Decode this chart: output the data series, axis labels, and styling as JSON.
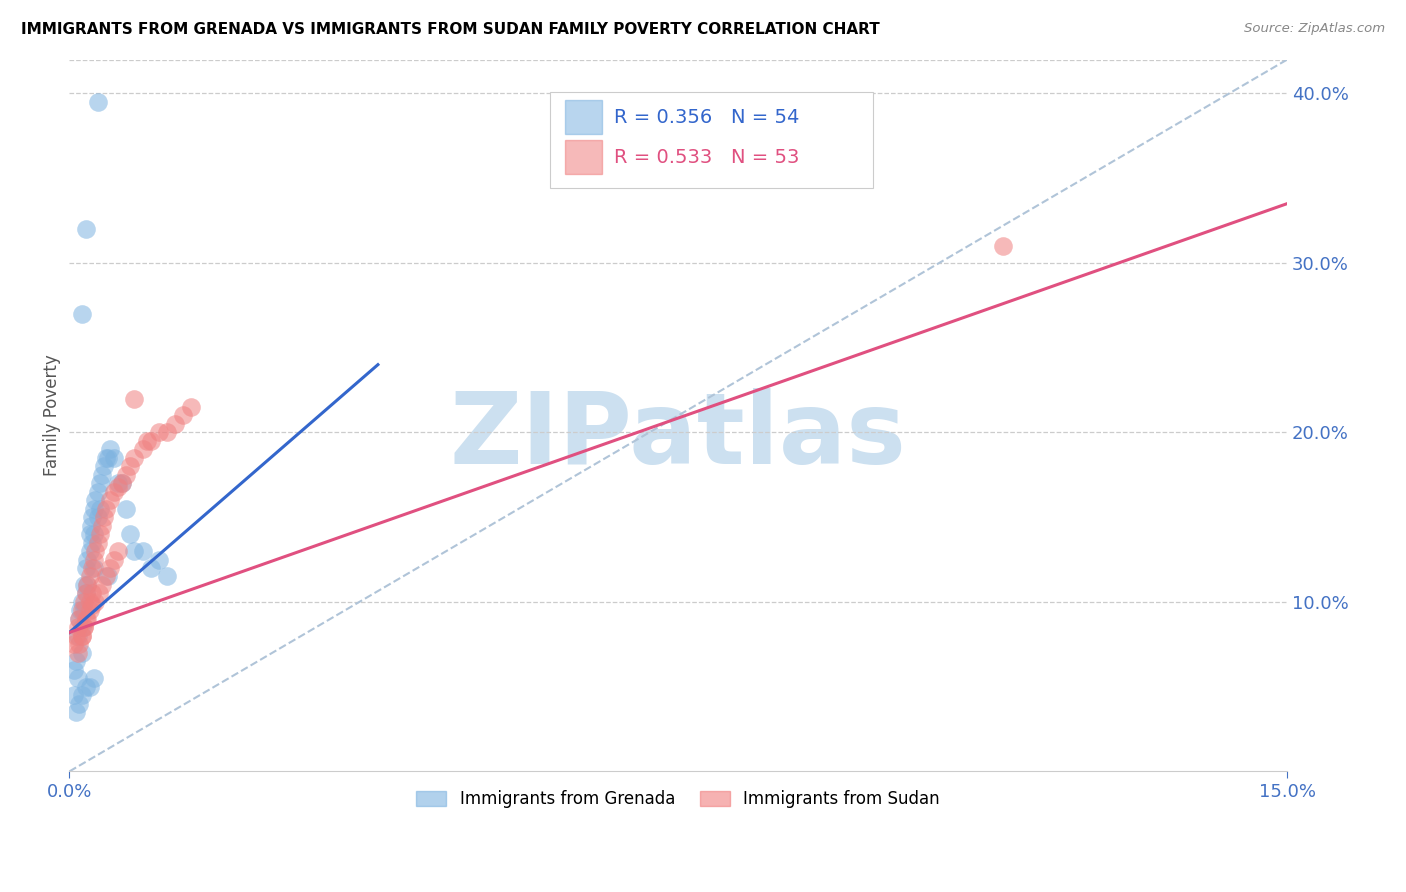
{
  "title": "IMMIGRANTS FROM GRENADA VS IMMIGRANTS FROM SUDAN FAMILY POVERTY CORRELATION CHART",
  "source": "Source: ZipAtlas.com",
  "ylabel": "Family Poverty",
  "xlim": [
    0.0,
    0.15
  ],
  "ylim": [
    0.0,
    0.42
  ],
  "y_ticks_right": [
    0.1,
    0.2,
    0.3,
    0.4
  ],
  "y_tick_labels_right": [
    "10.0%",
    "20.0%",
    "30.0%",
    "40.0%"
  ],
  "legend_R_grenada": "R = 0.356",
  "legend_N_grenada": "N = 54",
  "legend_R_sudan": "R = 0.533",
  "legend_N_sudan": "N = 53",
  "legend_label_grenada": "Immigrants from Grenada",
  "legend_label_sudan": "Immigrants from Sudan",
  "color_grenada": "#7eb3e0",
  "color_sudan": "#f08080",
  "color_line_grenada": "#3366cc",
  "color_line_sudan": "#e05080",
  "watermark": "ZIPatlas",
  "watermark_color": "#cce0f0",
  "grenada_x": [
    0.0005,
    0.0005,
    0.0008,
    0.001,
    0.001,
    0.0012,
    0.0013,
    0.0015,
    0.0015,
    0.0015,
    0.0018,
    0.0018,
    0.002,
    0.002,
    0.0022,
    0.0022,
    0.0025,
    0.0025,
    0.0026,
    0.0028,
    0.0028,
    0.003,
    0.003,
    0.003,
    0.0032,
    0.0035,
    0.0035,
    0.0038,
    0.0038,
    0.004,
    0.0042,
    0.0045,
    0.0048,
    0.005,
    0.0055,
    0.006,
    0.0065,
    0.007,
    0.0075,
    0.008,
    0.009,
    0.01,
    0.011,
    0.012,
    0.0008,
    0.0012,
    0.0016,
    0.002,
    0.0025,
    0.003,
    0.0015,
    0.002,
    0.0035,
    0.0048
  ],
  "grenada_y": [
    0.06,
    0.045,
    0.065,
    0.08,
    0.055,
    0.09,
    0.095,
    0.1,
    0.085,
    0.07,
    0.11,
    0.095,
    0.12,
    0.105,
    0.125,
    0.11,
    0.14,
    0.13,
    0.145,
    0.15,
    0.135,
    0.155,
    0.14,
    0.12,
    0.16,
    0.165,
    0.15,
    0.17,
    0.155,
    0.175,
    0.18,
    0.185,
    0.185,
    0.19,
    0.185,
    0.17,
    0.17,
    0.155,
    0.14,
    0.13,
    0.13,
    0.12,
    0.125,
    0.115,
    0.035,
    0.04,
    0.045,
    0.05,
    0.05,
    0.055,
    0.27,
    0.32,
    0.395,
    0.115
  ],
  "sudan_x": [
    0.0005,
    0.0008,
    0.001,
    0.0012,
    0.0015,
    0.0015,
    0.0018,
    0.0018,
    0.002,
    0.002,
    0.0022,
    0.0025,
    0.0025,
    0.0028,
    0.0028,
    0.003,
    0.0032,
    0.0035,
    0.0038,
    0.004,
    0.0042,
    0.0045,
    0.005,
    0.0055,
    0.006,
    0.0065,
    0.007,
    0.0075,
    0.008,
    0.009,
    0.01,
    0.011,
    0.012,
    0.013,
    0.014,
    0.015,
    0.001,
    0.0012,
    0.0015,
    0.0018,
    0.0022,
    0.0025,
    0.0028,
    0.0032,
    0.0036,
    0.004,
    0.0045,
    0.005,
    0.0055,
    0.006,
    0.115,
    0.008,
    0.0095
  ],
  "sudan_y": [
    0.075,
    0.08,
    0.085,
    0.09,
    0.095,
    0.08,
    0.1,
    0.085,
    0.105,
    0.09,
    0.11,
    0.115,
    0.1,
    0.12,
    0.105,
    0.125,
    0.13,
    0.135,
    0.14,
    0.145,
    0.15,
    0.155,
    0.16,
    0.165,
    0.168,
    0.17,
    0.175,
    0.18,
    0.185,
    0.19,
    0.195,
    0.2,
    0.2,
    0.205,
    0.21,
    0.215,
    0.07,
    0.075,
    0.08,
    0.085,
    0.09,
    0.095,
    0.098,
    0.1,
    0.105,
    0.11,
    0.115,
    0.12,
    0.125,
    0.13,
    0.31,
    0.22,
    0.195
  ],
  "grenada_trend_x": [
    0.0,
    0.038
  ],
  "grenada_trend_y": [
    0.082,
    0.24
  ],
  "sudan_trend_x": [
    0.0,
    0.15
  ],
  "sudan_trend_y": [
    0.082,
    0.335
  ]
}
